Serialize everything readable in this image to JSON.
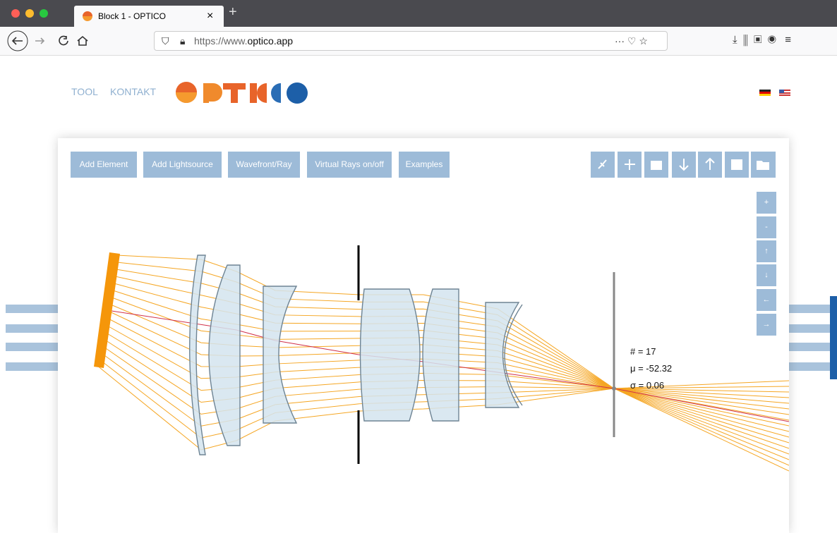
{
  "browser": {
    "tab_title": "Block 1 - OPTICO",
    "url_prefix": "https://www.",
    "url_domain": "optico.app"
  },
  "nav": [
    "TOOL",
    "KONTAKT"
  ],
  "toolbar": [
    "Add Element",
    "Add Lightsource",
    "Wavefront/Ray",
    "Virtual Rays on/off",
    "Examples"
  ],
  "side_buttons": [
    "+",
    "-",
    "↑",
    "↓",
    "←",
    "→"
  ],
  "stats": [
    "# = 17",
    "μ = -52.32",
    "σ = 0.06"
  ]
}
